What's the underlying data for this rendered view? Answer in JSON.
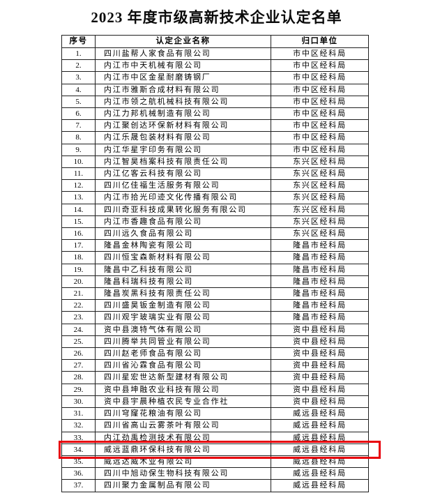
{
  "title": "2023 年度市级高新技术企业认定名单",
  "colors": {
    "highlight_border": "#e8000b",
    "table_border": "#1f1f1f",
    "background": "#ffffff"
  },
  "table": {
    "headers": {
      "no": "序号",
      "name": "认定企业名称",
      "unit": "归口单位"
    },
    "highlighted_row_no": "34.",
    "rows": [
      {
        "no": "1.",
        "name": "四川盐帮人家食品有限公司",
        "unit": "市中区经科局"
      },
      {
        "no": "2.",
        "name": "内江市中天机械有限公司",
        "unit": "市中区经科局"
      },
      {
        "no": "3.",
        "name": "内江市中区金星耐磨铸钢厂",
        "unit": "市中区经科局"
      },
      {
        "no": "4.",
        "name": "内江市雅斯合成材料有限公司",
        "unit": "市中区经科局"
      },
      {
        "no": "5.",
        "name": "内江市领之航机械科技有限公司",
        "unit": "市中区经科局"
      },
      {
        "no": "6.",
        "name": "内江力邦机械制造有限公司",
        "unit": "市中区经科局"
      },
      {
        "no": "7.",
        "name": "内江聚创达环保新材料有限公司",
        "unit": "市中区经科局"
      },
      {
        "no": "8.",
        "name": "内江乐晟包装材料有限公司",
        "unit": "市中区经科局"
      },
      {
        "no": "9.",
        "name": "内江华星宇印务有限公司",
        "unit": "市中区经科局"
      },
      {
        "no": "10.",
        "name": "内江智昊档案科技有限责任公司",
        "unit": "东兴区经科局"
      },
      {
        "no": "11.",
        "name": "内江亿客云科技有限公司",
        "unit": "东兴区经科局"
      },
      {
        "no": "12.",
        "name": "四川亿佳福生活服务有限公司",
        "unit": "东兴区经科局"
      },
      {
        "no": "13.",
        "name": "内江市拾光印迹文化传播有限公司",
        "unit": "东兴区经科局"
      },
      {
        "no": "14.",
        "name": "四川奇亚科技成果转化服务有限公司",
        "unit": "东兴区经科局"
      },
      {
        "no": "15.",
        "name": "内江市香趣食品有限公司",
        "unit": "东兴区经科局"
      },
      {
        "no": "16.",
        "name": "四川远久食品有限公司",
        "unit": "东兴区经科局"
      },
      {
        "no": "17.",
        "name": "隆昌金林陶瓷有限公司",
        "unit": "隆昌市经科局"
      },
      {
        "no": "18.",
        "name": "四川恒宝森新材料有限公司",
        "unit": "隆昌市经科局"
      },
      {
        "no": "19.",
        "name": "隆昌中乙科技有限公司",
        "unit": "隆昌市经科局"
      },
      {
        "no": "20.",
        "name": "隆昌科瑞科技有限公司",
        "unit": "隆昌市经科局"
      },
      {
        "no": "21.",
        "name": "隆昌炭黑科技有限责任公司",
        "unit": "隆昌市经科局"
      },
      {
        "no": "22.",
        "name": "四川盛昊钣金制造有限公司",
        "unit": "隆昌市经科局"
      },
      {
        "no": "23.",
        "name": "四川观宇玻璃实业有限公司",
        "unit": "隆昌市经科局"
      },
      {
        "no": "24.",
        "name": "资中县澳特气体有限公司",
        "unit": "资中县经科局"
      },
      {
        "no": "25.",
        "name": "四川腾举共同管业有限公司",
        "unit": "资中县经科局"
      },
      {
        "no": "26.",
        "name": "四川赵老师食品有限公司",
        "unit": "资中县经科局"
      },
      {
        "no": "27.",
        "name": "四川省沁霖食品有限公司",
        "unit": "资中县经科局"
      },
      {
        "no": "28.",
        "name": "四川星宏世达新型建材有限公司",
        "unit": "资中县经科局"
      },
      {
        "no": "29.",
        "name": "资中县坤融农业科技有限公司",
        "unit": "资中县经科局"
      },
      {
        "no": "30.",
        "name": "资中县宇晨种植农民专业合作社",
        "unit": "资中县经科局"
      },
      {
        "no": "31.",
        "name": "四川穹窿花粮油有限公司",
        "unit": "威远县经科局"
      },
      {
        "no": "32.",
        "name": "四川省高山云雾茶叶有限公司",
        "unit": "威远县经科局"
      },
      {
        "no": "33.",
        "name": "内江劲禹检测技术有限公司",
        "unit": "威远县经科局"
      },
      {
        "no": "34.",
        "name": "威远蓝鼎环保科技有限公司",
        "unit": "威远县经科局"
      },
      {
        "no": "35.",
        "name": "威远达威木业有限公司",
        "unit": "威远县经科局"
      },
      {
        "no": "36.",
        "name": "四川中旭动保生物科技有限公司",
        "unit": "威远县经科局"
      },
      {
        "no": "37.",
        "name": "四川聚力金属制品有限公司",
        "unit": "威远县经科局"
      }
    ]
  }
}
